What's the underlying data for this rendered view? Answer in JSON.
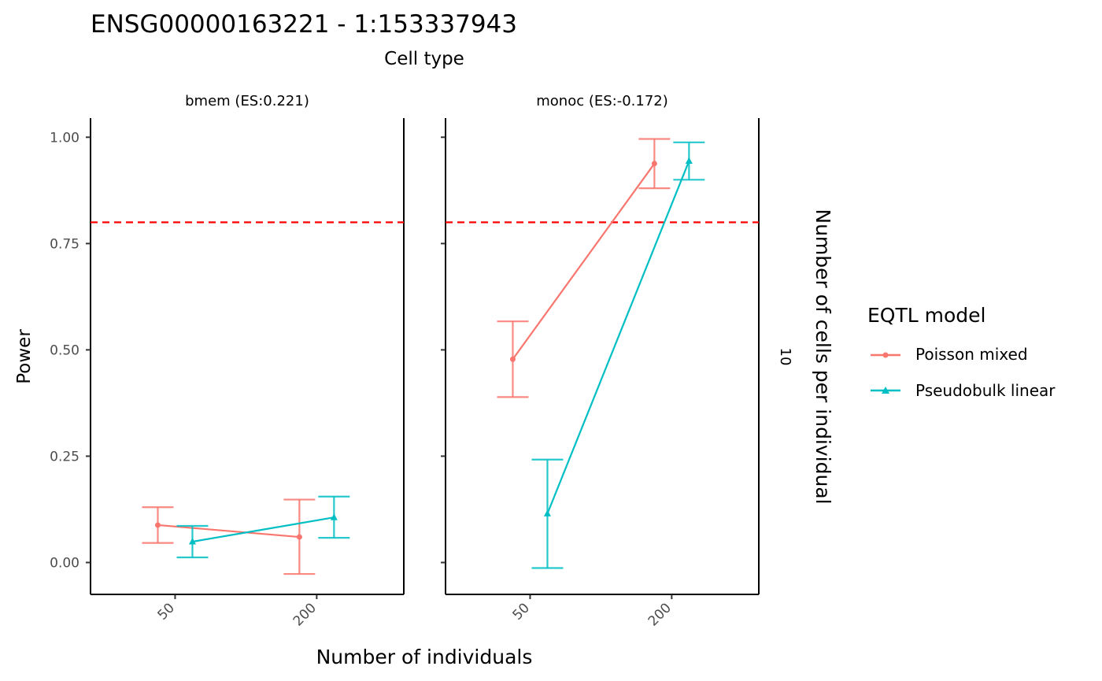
{
  "chart_data": {
    "type": "line",
    "title": "ENSG00000163221 - 1:153337943",
    "facet_title": "Cell type",
    "row_label": "Number of cells per individual",
    "row_value": "10",
    "xlabel": "Number of individuals",
    "ylabel": "Power",
    "categories": [
      "50",
      "200"
    ],
    "ylim": [
      -0.075,
      1.045
    ],
    "y_ticks": [
      "0.00",
      "0.25",
      "0.50",
      "0.75",
      "1.00"
    ],
    "threshold": 0.8,
    "legend": {
      "title": "EQTL model",
      "position": "right",
      "entries": [
        "Poisson mixed",
        "Pseudobulk linear"
      ]
    },
    "colors": {
      "poisson": "#F8766D",
      "pseudobulk": "#00BFC4",
      "threshold": "#FF0000"
    },
    "panels": [
      {
        "label": "bmem (ES:0.221)",
        "series": [
          {
            "name": "Poisson mixed",
            "values": [
              0.088,
              0.06
            ],
            "lower": [
              0.046,
              -0.027
            ],
            "upper": [
              0.13,
              0.148
            ]
          },
          {
            "name": "Pseudobulk linear",
            "values": [
              0.049,
              0.106
            ],
            "lower": [
              0.012,
              0.058
            ],
            "upper": [
              0.086,
              0.155
            ]
          }
        ]
      },
      {
        "label": "monoc (ES:-0.172)",
        "series": [
          {
            "name": "Poisson mixed",
            "values": [
              0.478,
              0.938
            ],
            "lower": [
              0.389,
              0.88
            ],
            "upper": [
              0.567,
              0.996
            ]
          },
          {
            "name": "Pseudobulk linear",
            "values": [
              0.115,
              0.944
            ],
            "lower": [
              -0.013,
              0.9
            ],
            "upper": [
              0.242,
              0.988
            ]
          }
        ]
      }
    ]
  }
}
